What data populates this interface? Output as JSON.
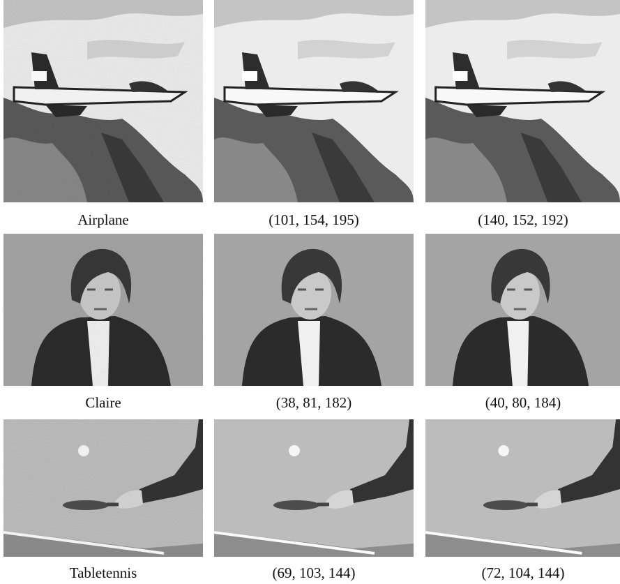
{
  "figure": {
    "rows": [
      [
        "Airplane",
        "(101, 154, 195)",
        "(140, 152, 192)"
      ],
      [
        "Claire",
        "(38, 81, 182)",
        "(40, 80, 184)"
      ],
      [
        "Tabletennis",
        "(69, 103, 144)",
        "(72, 104, 144)"
      ]
    ]
  }
}
